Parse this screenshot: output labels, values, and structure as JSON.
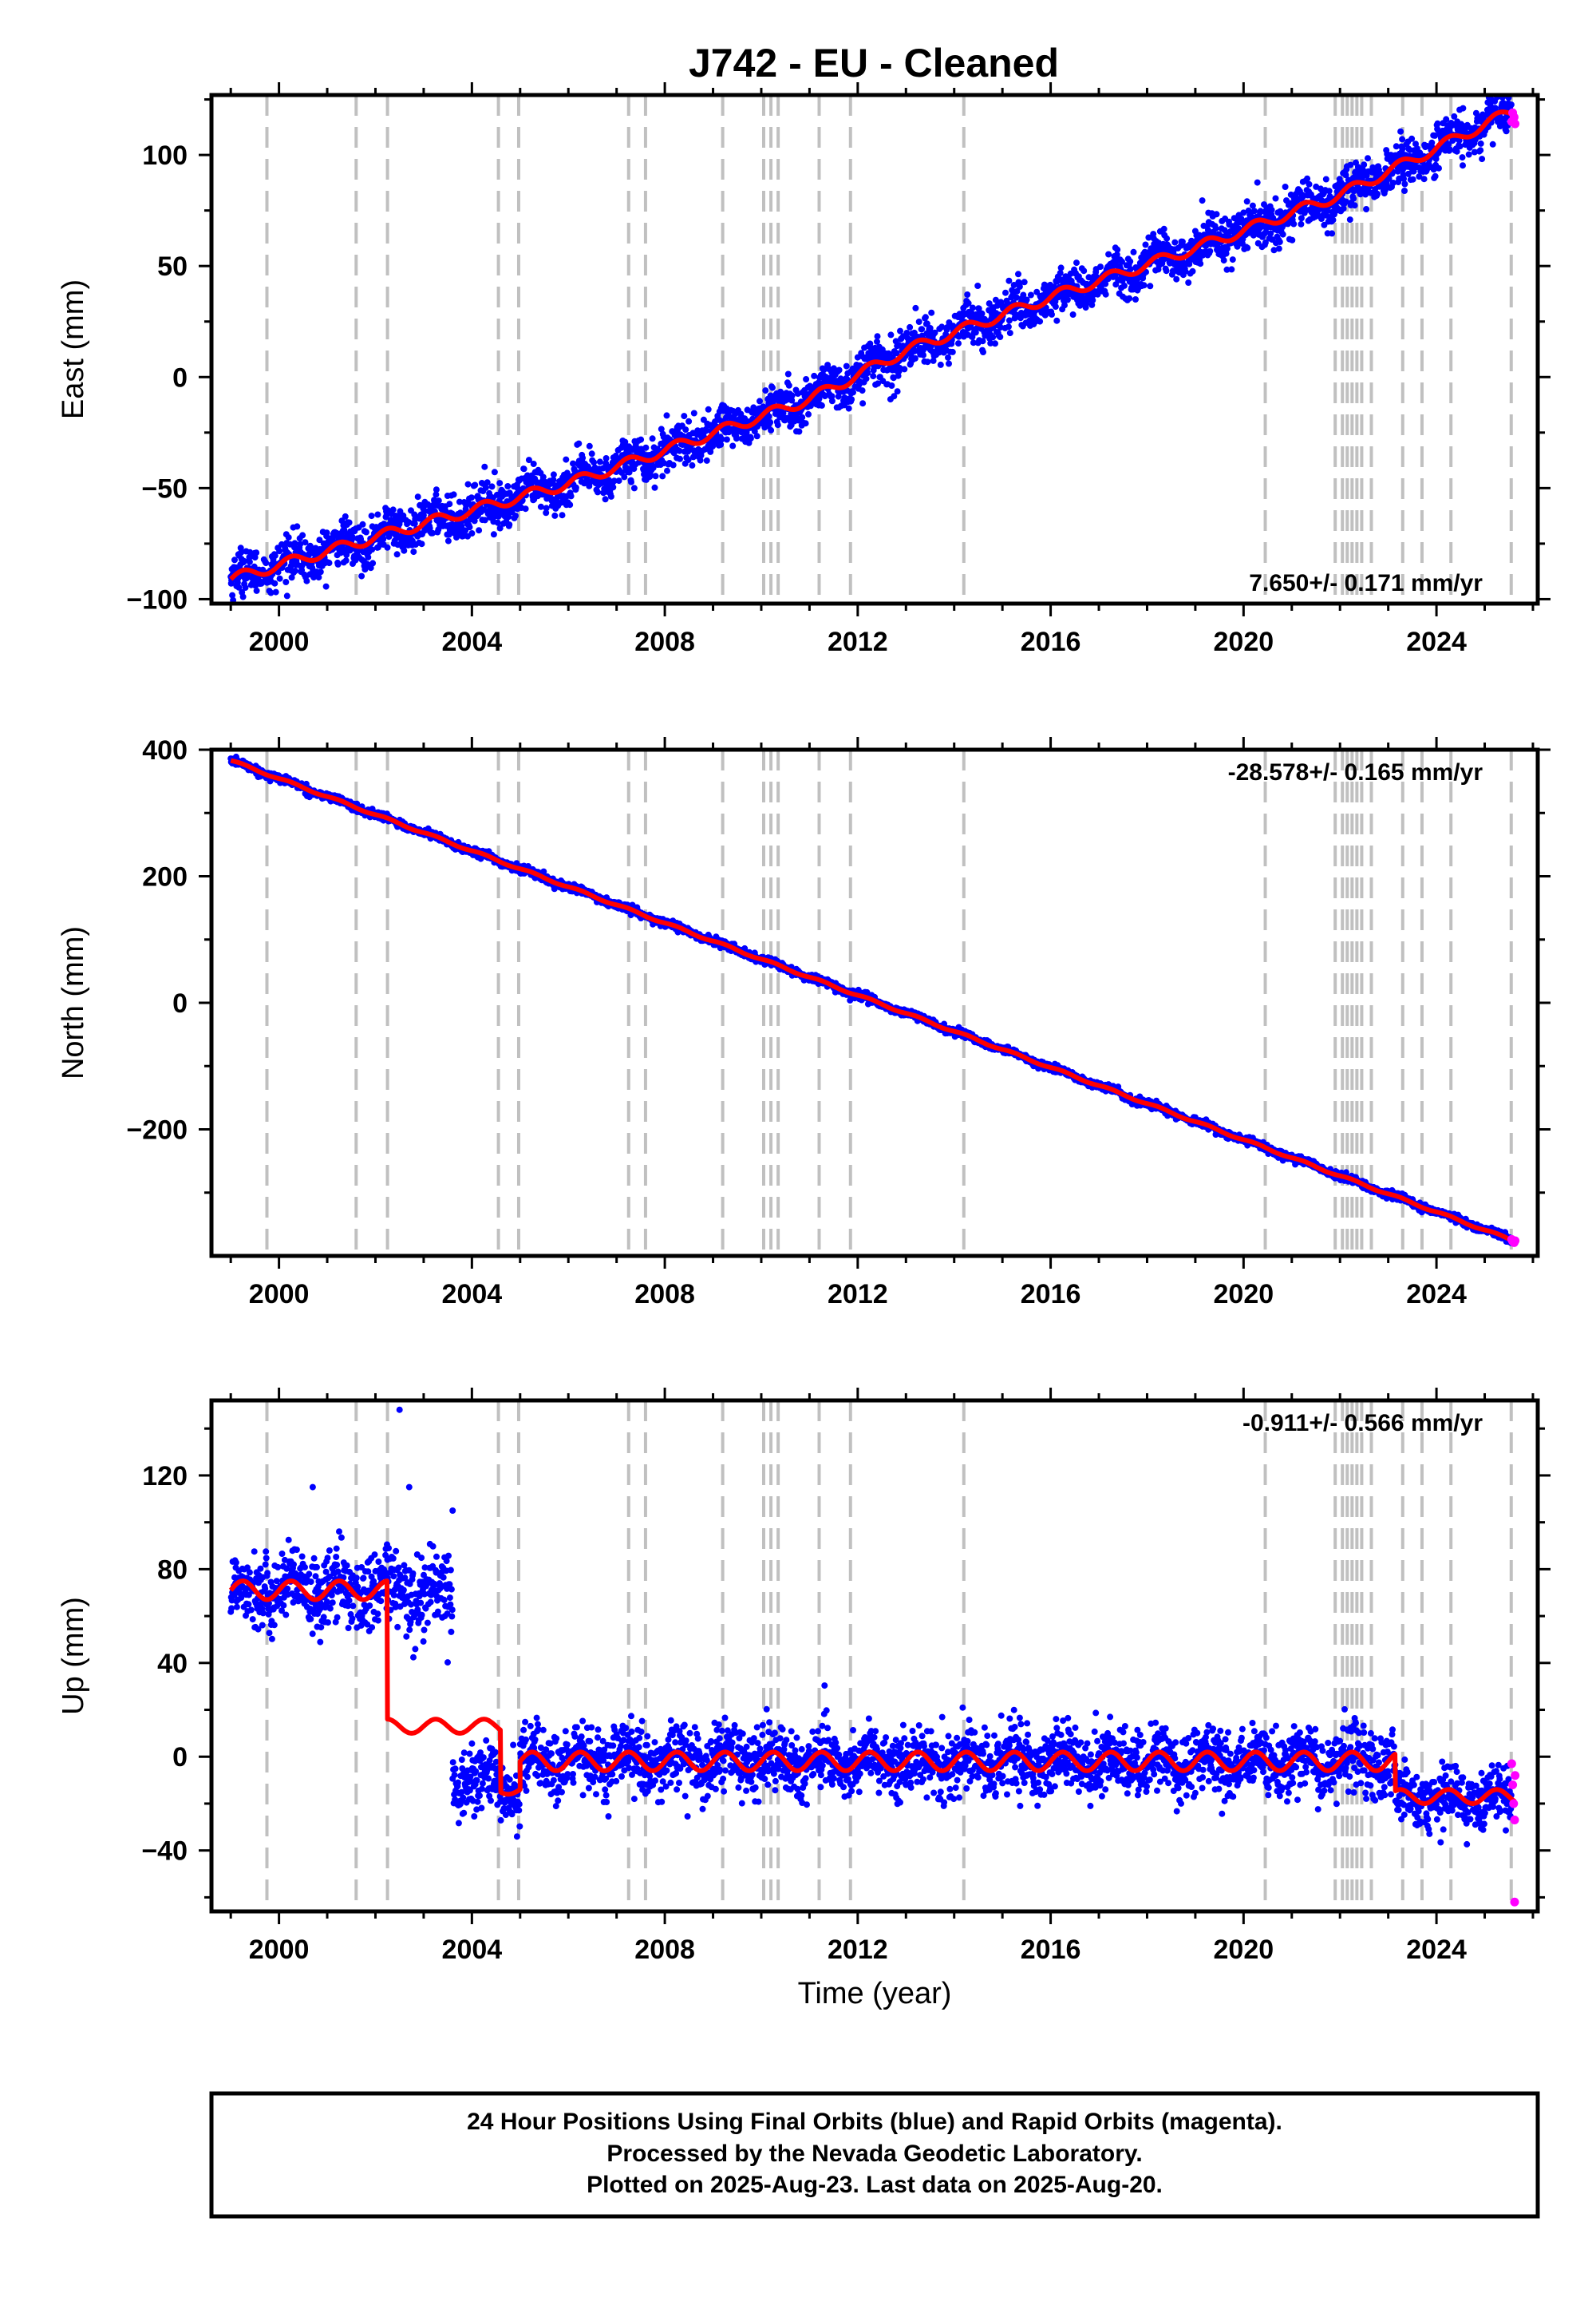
{
  "page": {
    "title": "J742  - EU - Cleaned"
  },
  "colors": {
    "final_orbits": "#0000ff",
    "rapid_orbits": "#ff00ff",
    "model": "#ff0000",
    "event_lines": "#c0c0c0",
    "frame": "#000000"
  },
  "footer": {
    "line1": "24 Hour Positions Using Final Orbits (blue) and Rapid Orbits (magenta).",
    "line2": "Processed by the Nevada Geodetic Laboratory.",
    "line3": "Plotted on 2025-Aug-23. Last data on 2025-Aug-20."
  },
  "chart_data": [
    {
      "type": "scatter",
      "component": "east",
      "ylabel": "East (mm)",
      "xlabel": "",
      "xlim": [
        1998.6,
        2026.1
      ],
      "ylim": [
        -102,
        127
      ],
      "xticks": [
        "2000",
        "2004",
        "2008",
        "2012",
        "2016",
        "2020",
        "2024"
      ],
      "yticks": [
        "−100",
        "−50",
        "0",
        "50",
        "100"
      ],
      "rate_text": "7.650+/- 0.171 mm/yr",
      "rate_position": "bottom-right",
      "velocity_mm_per_yr": 7.65,
      "model_points": [
        [
          1999.0,
          -91
        ],
        [
          2002.5,
          -69
        ],
        [
          2006.0,
          -48
        ],
        [
          2008.0,
          -33
        ],
        [
          2011.0,
          -10
        ],
        [
          2013.0,
          12
        ],
        [
          2016.0,
          36
        ],
        [
          2019.0,
          58
        ],
        [
          2022.0,
          82
        ],
        [
          2025.5,
          119
        ]
      ],
      "data_start": 1999.0,
      "data_end": 2025.63,
      "scatter_mm": 5,
      "seasonal_mm": 3,
      "rapid_points": [
        [
          2025.56,
          115
        ],
        [
          2025.58,
          119
        ],
        [
          2025.61,
          117
        ],
        [
          2025.63,
          114
        ]
      ]
    },
    {
      "type": "scatter",
      "component": "north",
      "ylabel": "North (mm)",
      "xlabel": "",
      "xlim": [
        1998.6,
        2026.1
      ],
      "ylim": [
        -400,
        400
      ],
      "xticks": [
        "2000",
        "2004",
        "2008",
        "2012",
        "2016",
        "2020",
        "2024"
      ],
      "yticks": [
        "−200",
        "0",
        "200",
        "400"
      ],
      "rate_text": "-28.578+/- 0.165 mm/yr",
      "rate_position": "top-right",
      "velocity_mm_per_yr": -28.578,
      "model_points": [
        [
          1999.0,
          383
        ],
        [
          2025.63,
          -377
        ]
      ],
      "data_start": 1999.0,
      "data_end": 2025.63,
      "scatter_mm": 3,
      "seasonal_mm": 2,
      "rapid_points": [
        [
          2025.56,
          -374
        ],
        [
          2025.58,
          -377
        ],
        [
          2025.61,
          -379
        ],
        [
          2025.63,
          -376
        ]
      ]
    },
    {
      "type": "scatter",
      "component": "up",
      "ylabel": "Up (mm)",
      "xlabel": "Time (year)",
      "xlim": [
        1998.6,
        2026.1
      ],
      "ylim": [
        -66,
        152
      ],
      "xticks": [
        "2000",
        "2004",
        "2008",
        "2012",
        "2016",
        "2020",
        "2024"
      ],
      "yticks": [
        "−40",
        "0",
        "40",
        "80",
        "120"
      ],
      "rate_text": "-0.911+/- 0.566 mm/yr",
      "rate_position": "top-right",
      "velocity_mm_per_yr": -0.911,
      "segments": [
        {
          "start": 1999.0,
          "end": 2002.25,
          "level": 71,
          "amp": 4,
          "scatter": 8
        },
        {
          "start": 2002.25,
          "end": 2003.6,
          "level": 70,
          "amp": 4,
          "scatter": 9
        },
        {
          "start": 2003.6,
          "end": 2004.6,
          "level": -10,
          "amp": 3,
          "scatter": 7
        },
        {
          "start": 2004.6,
          "end": 2005.0,
          "level": -16,
          "amp": 2,
          "scatter": 7
        },
        {
          "start": 2005.0,
          "end": 2023.15,
          "level": -2,
          "amp": 4,
          "scatter": 7
        },
        {
          "start": 2023.15,
          "end": 2025.63,
          "level": -18,
          "amp": 3,
          "scatter": 6
        }
      ],
      "model_segments": [
        {
          "start": 1999.0,
          "end": 2002.25,
          "level": 71,
          "amp": 4
        },
        {
          "start": 2002.25,
          "end": 2004.6,
          "level": 13,
          "amp": 3
        },
        {
          "start": 2004.6,
          "end": 2005.0,
          "level": -14,
          "amp": 2
        },
        {
          "start": 2005.0,
          "end": 2023.15,
          "level": -2,
          "amp": 4
        },
        {
          "start": 2023.15,
          "end": 2025.63,
          "level": -17,
          "amp": 3
        }
      ],
      "outliers": [
        [
          2002.5,
          148
        ],
        [
          2000.7,
          115
        ],
        [
          2002.7,
          115
        ],
        [
          2003.6,
          105
        ]
      ],
      "rapid_points": [
        [
          2025.56,
          -3
        ],
        [
          2025.58,
          -12
        ],
        [
          2025.6,
          -20
        ],
        [
          2025.62,
          -27
        ],
        [
          2025.62,
          -62
        ],
        [
          2025.63,
          -8
        ]
      ]
    }
  ],
  "event_lines": [
    1999.75,
    2001.6,
    2002.25,
    2004.55,
    2004.97,
    2007.25,
    2007.6,
    2009.2,
    2010.05,
    2010.2,
    2010.35,
    2011.2,
    2011.85,
    2014.2,
    2020.45,
    2021.9,
    2022.05,
    2022.15,
    2022.25,
    2022.35,
    2022.45,
    2022.65,
    2023.3,
    2023.7,
    2024.3,
    2025.55
  ]
}
